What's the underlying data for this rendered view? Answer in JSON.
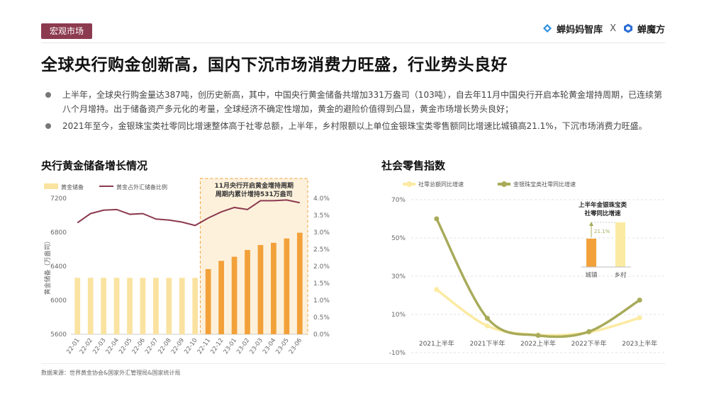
{
  "tag": "宏观市场",
  "brand": {
    "left": "蝉妈妈智库",
    "sep": "X",
    "right": "蝉魔方"
  },
  "title": "全球央行购金创新高，国内下沉市场消费力旺盛，行业势头良好",
  "bullets": [
    "上半年，全球央行购金量达387吨，创历史新高，其中，中国央行黄金储备共增加331万盎司（103吨），自去年11月中国央行开启本轮黄金增持周期，已连续第八个月增持。出于储备资产多元化的考量，全球经济不确定性增加，黄金的避险价值得到凸显，黄金市场增长势头良好；",
    "2021年至今，金银珠宝类社零同比增速整体高于社零总额，上半年，乡村限额以上单位金银珠宝类零售额同比增速比城镇高21.1%，下沉市场消费力旺盛。"
  ],
  "left_title": "央行黄金储备增长情况",
  "right_title": "社会零售指数",
  "source": "数据来源：世界黄金协会&国家外汇管理局&国家统计局",
  "colors": {
    "bar_light": "#fae3a0",
    "bar_dark": "#f2a13a",
    "line_ratio": "#8c3a4f",
    "line_total": "#fbeaa2",
    "line_jewelry": "#a8ab5a",
    "tag_bg": "#8c3a4f"
  },
  "chart_data": [
    {
      "type": "bar",
      "categories": [
        "22-01",
        "22-02",
        "22-03",
        "22-04",
        "22-05",
        "22-06",
        "22-07",
        "22-08",
        "22-09",
        "22-10",
        "22-11",
        "22-12",
        "23-01",
        "23-02",
        "23-03",
        "23-04",
        "23-05",
        "23-06"
      ],
      "ylabel": "黄金储备（万盎司）",
      "ylim": [
        5600,
        7200
      ],
      "yticks": [
        "5600",
        "6000",
        "6400",
        "6800",
        "7200"
      ],
      "y2lim": [
        0,
        4.0
      ],
      "y2ticks": [
        "0.0%",
        "0.5%",
        "1.0%",
        "1.5%",
        "2.0%",
        "2.5%",
        "3.0%",
        "3.5%",
        "4.0%"
      ],
      "legend": [
        "黄金储备",
        "黄金占外汇储备比例"
      ],
      "series": [
        {
          "name": "黄金储备",
          "type": "bar",
          "values": [
            6264,
            6264,
            6264,
            6264,
            6264,
            6264,
            6264,
            6264,
            6264,
            6264,
            6367,
            6464,
            6512,
            6592,
            6650,
            6676,
            6727,
            6795
          ]
        },
        {
          "name": "黄金占外汇储备比例",
          "type": "line",
          "axis": "right",
          "values": [
            3.28,
            3.55,
            3.65,
            3.67,
            3.53,
            3.55,
            3.39,
            3.36,
            3.3,
            3.2,
            3.42,
            3.6,
            3.73,
            3.67,
            3.93,
            3.93,
            3.95,
            3.87
          ]
        }
      ],
      "highlight": {
        "from": "22-11",
        "to": "23-06",
        "annotation": [
          "11月央行开启黄金增持周期",
          "周期内累计增持531万盎司"
        ]
      }
    },
    {
      "type": "line",
      "categories": [
        "2021上半年",
        "2021下半年",
        "2022上半年",
        "2022下半年",
        "2023上半年"
      ],
      "ylim": [
        -10,
        70
      ],
      "yticks": [
        "-10%",
        "10%",
        "30%",
        "50%",
        "70%"
      ],
      "legend": [
        "社零总额同比增速",
        "金银珠宝类社零同比增速"
      ],
      "series": [
        {
          "name": "社零总额同比增速",
          "values": [
            23.0,
            4.0,
            -0.7,
            0.7,
            8.2
          ]
        },
        {
          "name": "金银珠宝类社零同比增速",
          "values": [
            60.0,
            8.0,
            -1.0,
            1.0,
            17.5
          ]
        }
      ],
      "inset": {
        "title": [
          "上半年金银珠宝类",
          "社零同比增速"
        ],
        "categories": [
          "城镇",
          "乡村"
        ],
        "diff_label": "21.1%"
      }
    }
  ]
}
